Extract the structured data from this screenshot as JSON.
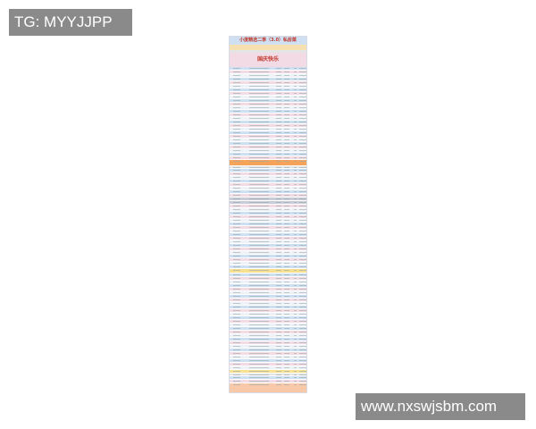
{
  "overlay": {
    "tg": "TG: MYYJJPP",
    "site": "www.nxswjsbm.com"
  },
  "sheet": {
    "title": "小度精选二季（3.0）私房菜",
    "banner": "国庆快乐",
    "colors": {
      "title_bg": "#cfe0f3",
      "title_text": "#c0392b",
      "row_blue": "#cddff2",
      "row_pink": "#f3dbe6",
      "row_white": "#eef2f8",
      "band_orange": "#f6a35a",
      "band_yellow": "#f7e08f",
      "footer": "#f8c9a8",
      "header_gray": "#e4e4e4"
    }
  }
}
